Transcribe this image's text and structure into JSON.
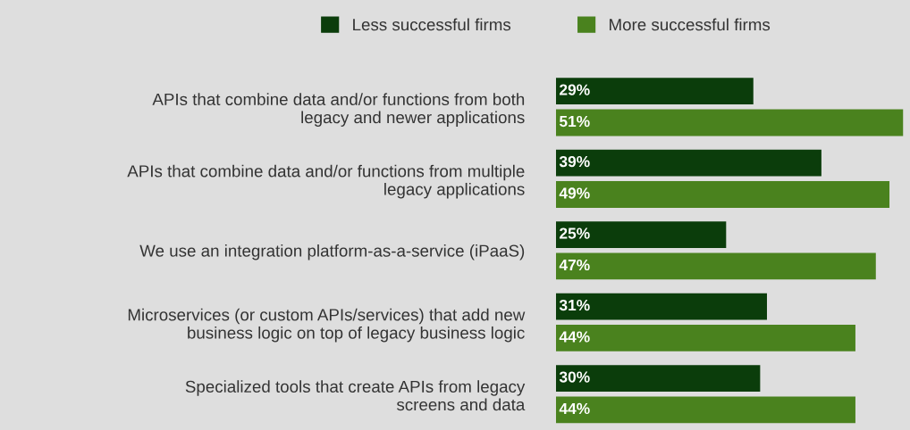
{
  "chart_data": {
    "type": "bar",
    "orientation": "horizontal",
    "legend": "top",
    "grid": false,
    "categories": [
      "APIs that combine data and/or functions from both\nlegacy and newer applications",
      "APIs that combine data and/or functions from multiple\nlegacy applications",
      "We use an integration platform-as-a-service (iPaaS)",
      "Microservices (or custom APIs/services) that add new\nbusiness logic on top of legacy business logic",
      "Specialized tools that create APIs from legacy\nscreens and data"
    ],
    "series": [
      {
        "name": "Less successful firms",
        "color": "#0b3d0b",
        "values": [
          29,
          39,
          25,
          31,
          30
        ],
        "value_labels": [
          "29%",
          "39%",
          "25%",
          "31%",
          "30%"
        ]
      },
      {
        "name": "More successful firms",
        "color": "#4a821e",
        "values": [
          51,
          49,
          47,
          44,
          44
        ],
        "value_labels": [
          "51%",
          "49%",
          "47%",
          "44%",
          "44%"
        ]
      }
    ]
  }
}
